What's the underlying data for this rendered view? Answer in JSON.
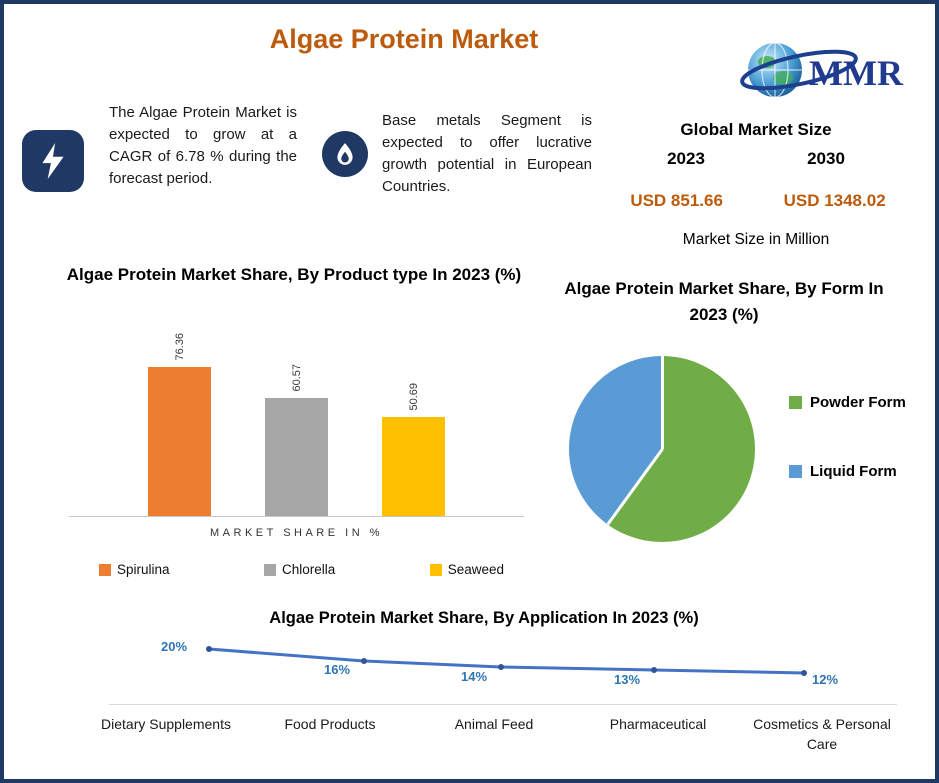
{
  "header": {
    "title": "Algae Protein Market",
    "logo_text": "MMR"
  },
  "callouts": [
    {
      "icon": "lightning-icon",
      "text": "The Algae Protein Market is expected to grow at a CAGR of 6.78 % during the forecast period."
    },
    {
      "icon": "flame-icon",
      "text": "Base metals Segment is expected to offer lucrative growth potential in European Countries."
    }
  ],
  "market_size": {
    "title": "Global Market Size",
    "year_start": "2023",
    "year_end": "2030",
    "value_start": "USD 851.66",
    "value_end": "USD 1348.02",
    "caption": "Market Size in Million"
  },
  "colors": {
    "accent": "#BD5B0D",
    "navy": "#1F3864",
    "line_label": "#2E75B6"
  },
  "chart_data": [
    {
      "type": "bar",
      "title": "Algae Protein Market Share, By Product type In 2023 (%)",
      "categories": [
        "Spirulina",
        "Chlorella",
        "Seaweed"
      ],
      "values": [
        76.36,
        60.57,
        50.69
      ],
      "colors": [
        "#ED7D31",
        "#A6A6A6",
        "#FFC000"
      ],
      "xlabel": "MARKET SHARE IN %",
      "ylim": [
        0,
        100
      ],
      "grid": false,
      "legend_position": "bottom",
      "value_labels_rotated": true
    },
    {
      "type": "pie",
      "title": "Algae Protein Market Share, By Form In 2023 (%)",
      "categories": [
        "Powder Form",
        "Liquid Form"
      ],
      "values": [
        60,
        40
      ],
      "colors": [
        "#70AD47",
        "#5B9BD5"
      ],
      "legend_position": "right"
    },
    {
      "type": "line",
      "title": "Algae Protein Market Share, By Application In 2023 (%)",
      "categories": [
        "Dietary Supplements",
        "Food Products",
        "Animal Feed",
        "Pharmaceutical",
        "Cosmetics & Personal Care"
      ],
      "values": [
        20,
        16,
        14,
        13,
        12
      ],
      "value_labels": [
        "20%",
        "16%",
        "14%",
        "13%",
        "12%"
      ],
      "ylim": [
        10,
        22
      ],
      "grid": false,
      "color": "#4472C4",
      "marker_color": "#2E5597"
    }
  ]
}
